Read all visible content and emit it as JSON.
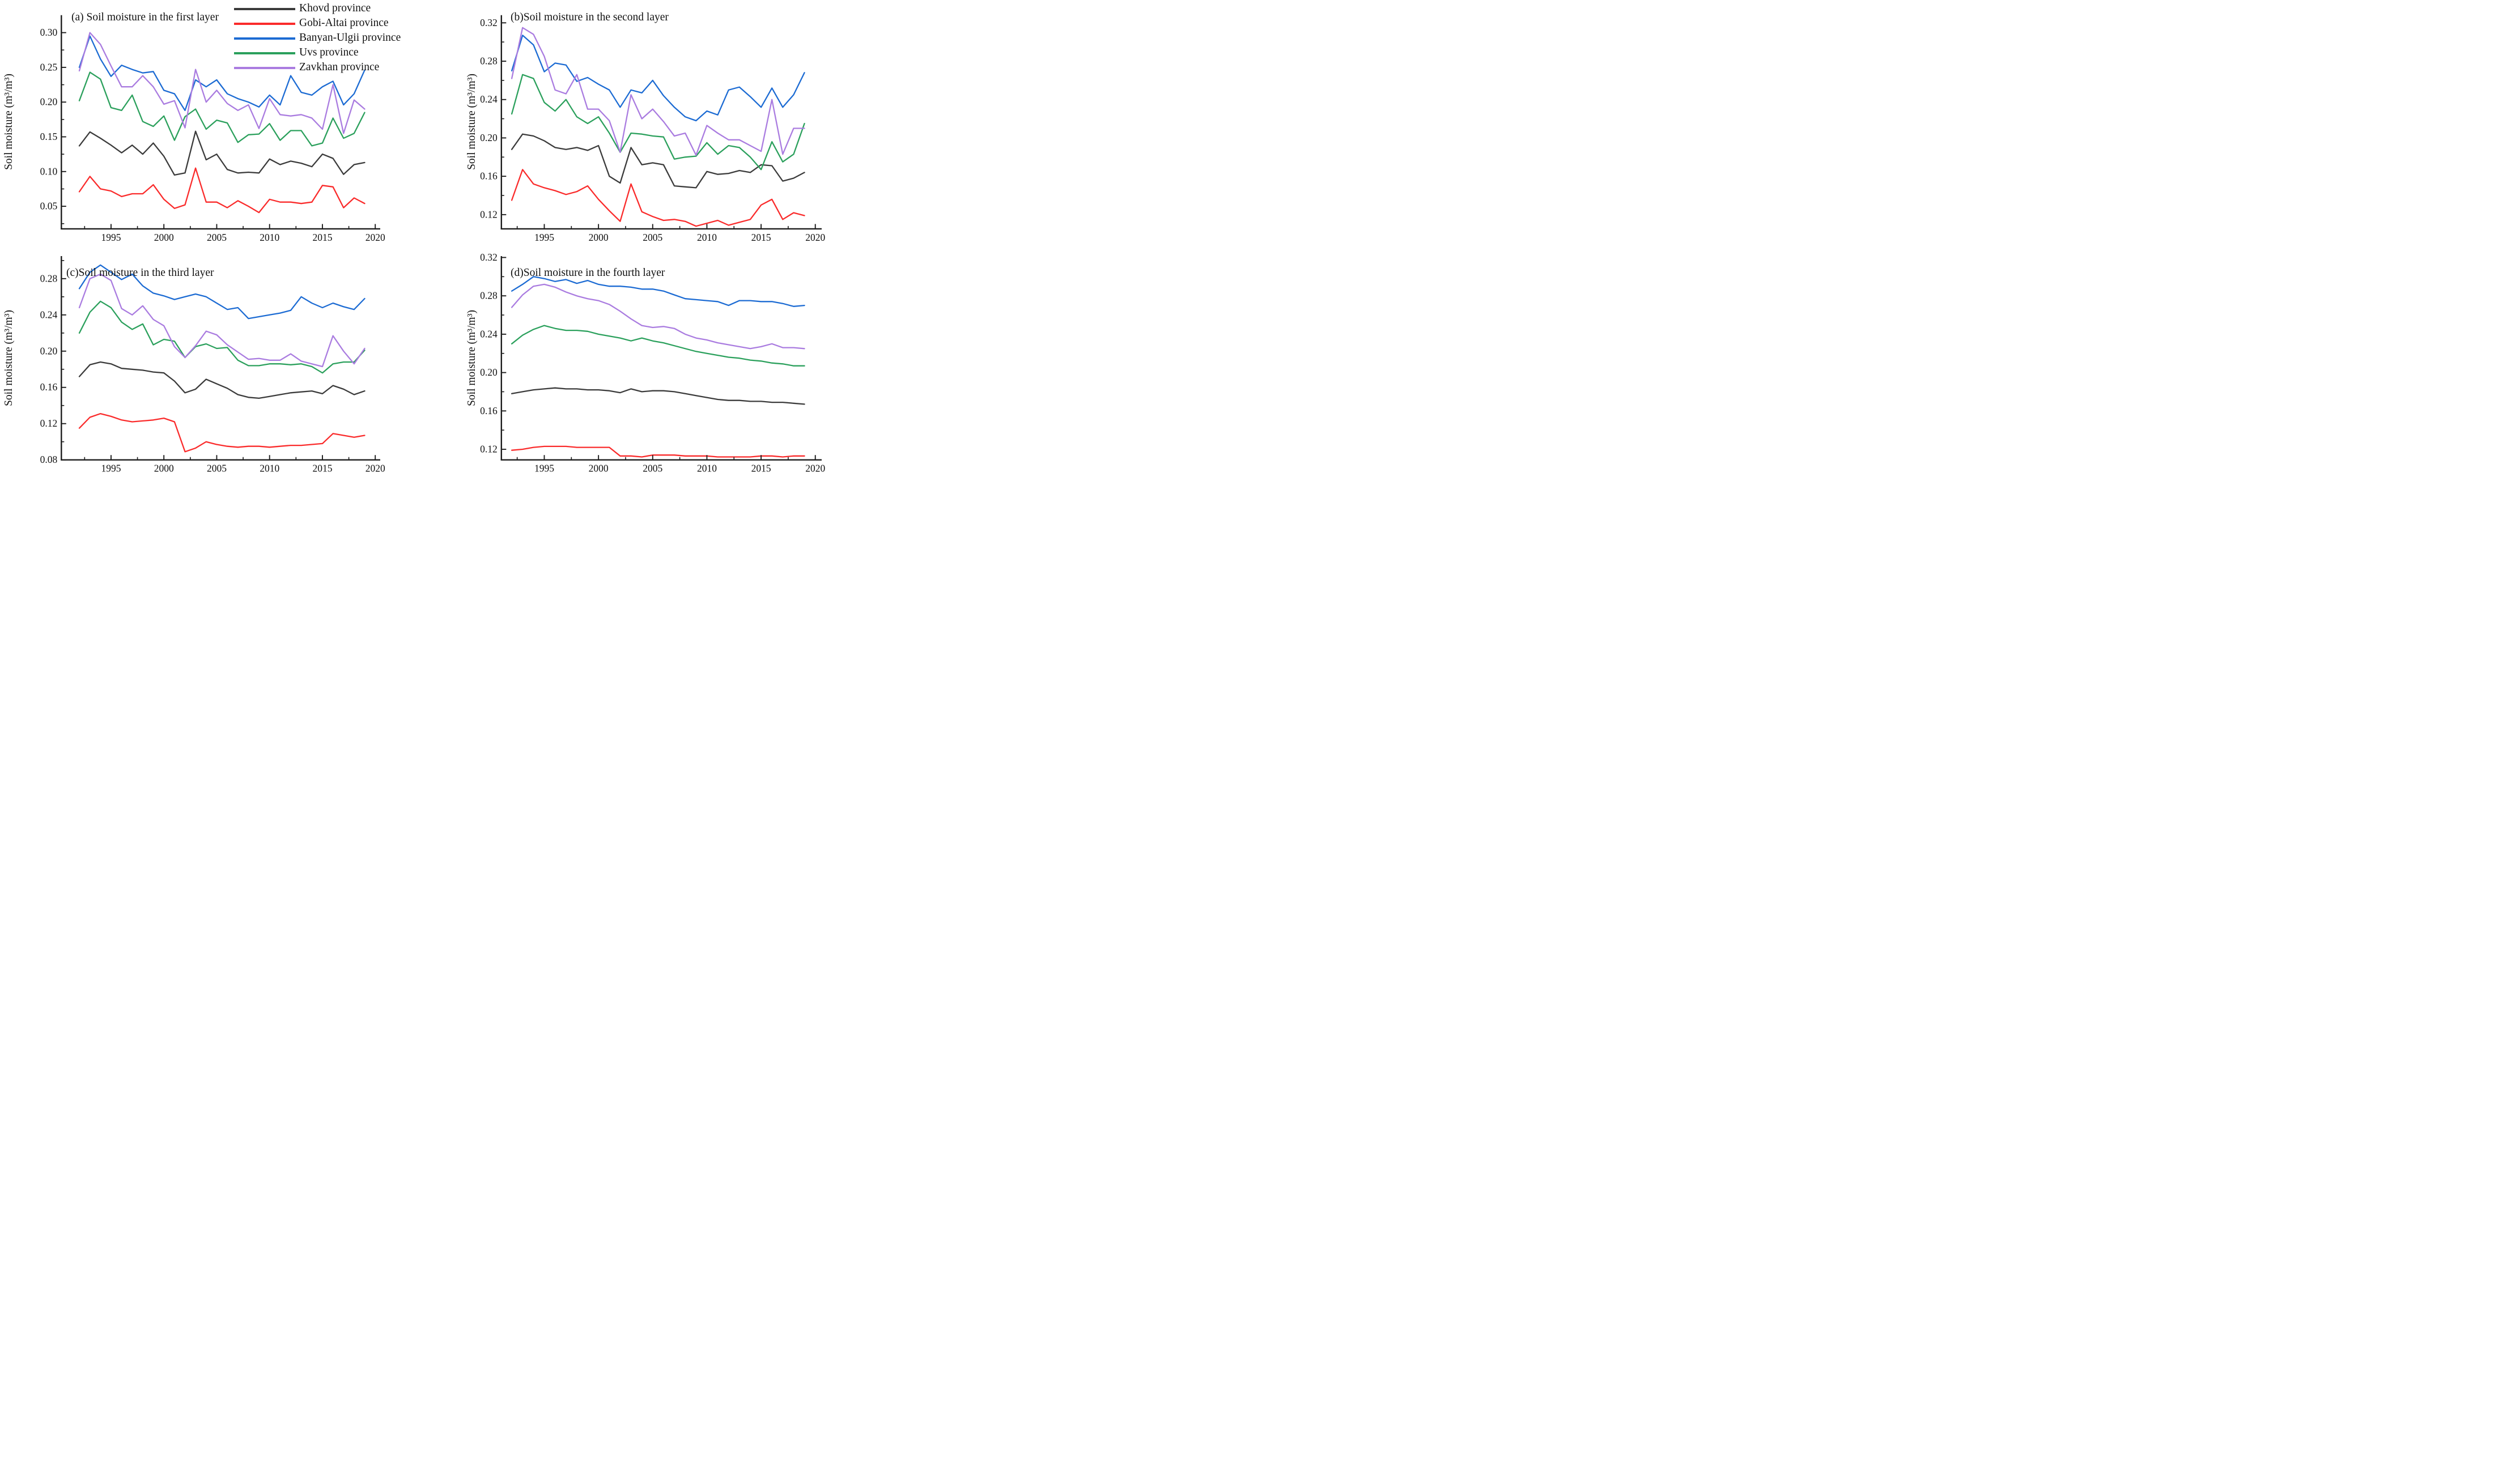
{
  "figure": {
    "description": "Annual soil moisture (1992-2019) in five western Mongolian provinces for four soil layers",
    "background": "#ffffff",
    "axis_color": "#1c1c1c"
  },
  "legend": {
    "entries": [
      {
        "id": "khovd",
        "label": "Khovd province",
        "color": "#3b3b3b"
      },
      {
        "id": "gobi",
        "label": "Gobi-Altai province",
        "color": "#fa2b2b"
      },
      {
        "id": "banyan",
        "label": "Banyan-Ulgii province",
        "color": "#1c6bd3"
      },
      {
        "id": "uvs",
        "label": "Uvs province",
        "color": "#2ba05c"
      },
      {
        "id": "zavkhan",
        "label": "Zavkhan province",
        "color": "#aa7ce0"
      }
    ]
  },
  "chart_data": [
    {
      "id": "a",
      "type": "line",
      "title": "(a) Soil moisture in the first layer",
      "ylabel": "Soil moisture (m³/m³)",
      "xlabel": "",
      "grid": false,
      "legend_position": "top-center-overlay",
      "x_years": [
        1992,
        1993,
        1994,
        1995,
        1996,
        1997,
        1998,
        1999,
        2000,
        2001,
        2002,
        2003,
        2004,
        2005,
        2006,
        2007,
        2008,
        2009,
        2010,
        2011,
        2012,
        2013,
        2014,
        2015,
        2016,
        2017,
        2018,
        2019
      ],
      "xticks": [
        1995,
        2000,
        2005,
        2010,
        2015,
        2020
      ],
      "xminor": [
        1992.5,
        1997.5,
        2002.5,
        2007.5,
        2012.5,
        2017.5
      ],
      "yticks": [
        0.05,
        0.1,
        0.15,
        0.2,
        0.25,
        0.3
      ],
      "yminor": [
        0.025,
        0.075,
        0.125,
        0.175,
        0.225,
        0.275
      ],
      "ylim": [
        0.018,
        0.325
      ],
      "series": [
        {
          "name": "Khovd province",
          "color": "#3b3b3b",
          "values": [
            0.137,
            0.157,
            0.148,
            0.138,
            0.127,
            0.138,
            0.125,
            0.141,
            0.122,
            0.095,
            0.098,
            0.158,
            0.117,
            0.125,
            0.103,
            0.098,
            0.099,
            0.098,
            0.118,
            0.11,
            0.115,
            0.112,
            0.107,
            0.125,
            0.119,
            0.096,
            0.11,
            0.113
          ]
        },
        {
          "name": "Gobi-Altai province",
          "color": "#fa2b2b",
          "values": [
            0.071,
            0.093,
            0.075,
            0.072,
            0.064,
            0.068,
            0.068,
            0.081,
            0.06,
            0.047,
            0.052,
            0.105,
            0.056,
            0.056,
            0.048,
            0.058,
            0.05,
            0.041,
            0.06,
            0.056,
            0.056,
            0.054,
            0.056,
            0.08,
            0.078,
            0.048,
            0.062,
            0.054
          ]
        },
        {
          "name": "Banyan-Ulgii province",
          "color": "#1c6bd3",
          "values": [
            0.25,
            0.295,
            0.262,
            0.237,
            0.253,
            0.247,
            0.242,
            0.244,
            0.217,
            0.212,
            0.188,
            0.232,
            0.222,
            0.232,
            0.212,
            0.205,
            0.2,
            0.193,
            0.21,
            0.196,
            0.238,
            0.214,
            0.21,
            0.222,
            0.23,
            0.196,
            0.212,
            0.246
          ]
        },
        {
          "name": "Uvs province",
          "color": "#2ba05c",
          "values": [
            0.202,
            0.243,
            0.233,
            0.192,
            0.188,
            0.21,
            0.172,
            0.165,
            0.18,
            0.145,
            0.179,
            0.19,
            0.161,
            0.174,
            0.17,
            0.142,
            0.153,
            0.154,
            0.169,
            0.145,
            0.159,
            0.159,
            0.137,
            0.141,
            0.177,
            0.148,
            0.155,
            0.185
          ]
        },
        {
          "name": "Zavkhan province",
          "color": "#aa7ce0",
          "values": [
            0.245,
            0.3,
            0.283,
            0.252,
            0.222,
            0.222,
            0.238,
            0.222,
            0.197,
            0.202,
            0.163,
            0.247,
            0.2,
            0.217,
            0.198,
            0.188,
            0.196,
            0.162,
            0.205,
            0.182,
            0.18,
            0.182,
            0.177,
            0.161,
            0.225,
            0.155,
            0.203,
            0.19
          ]
        }
      ]
    },
    {
      "id": "b",
      "type": "line",
      "title": "(b)Soil moisture in the second layer",
      "ylabel": "Soil moisture (m³/m³)",
      "xlabel": "",
      "grid": false,
      "x_years": [
        1992,
        1993,
        1994,
        1995,
        1996,
        1997,
        1998,
        1999,
        2000,
        2001,
        2002,
        2003,
        2004,
        2005,
        2006,
        2007,
        2008,
        2009,
        2010,
        2011,
        2012,
        2013,
        2014,
        2015,
        2016,
        2017,
        2018,
        2019
      ],
      "xticks": [
        1995,
        2000,
        2005,
        2010,
        2015,
        2020
      ],
      "xminor": [
        1992.5,
        1997.5,
        2002.5,
        2007.5,
        2012.5,
        2017.5
      ],
      "yticks": [
        0.12,
        0.16,
        0.2,
        0.24,
        0.28,
        0.32
      ],
      "yminor": [
        0.14,
        0.18,
        0.22,
        0.26,
        0.3
      ],
      "ylim": [
        0.105,
        0.328
      ],
      "series": [
        {
          "name": "Khovd province",
          "color": "#3b3b3b",
          "values": [
            0.188,
            0.204,
            0.202,
            0.197,
            0.19,
            0.188,
            0.19,
            0.187,
            0.192,
            0.16,
            0.153,
            0.19,
            0.172,
            0.174,
            0.172,
            0.15,
            0.149,
            0.148,
            0.165,
            0.162,
            0.163,
            0.166,
            0.164,
            0.172,
            0.171,
            0.155,
            0.158,
            0.164
          ]
        },
        {
          "name": "Gobi-Altai province",
          "color": "#fa2b2b",
          "values": [
            0.135,
            0.167,
            0.152,
            0.148,
            0.145,
            0.141,
            0.144,
            0.15,
            0.136,
            0.124,
            0.113,
            0.152,
            0.123,
            0.118,
            0.114,
            0.115,
            0.113,
            0.108,
            0.111,
            0.114,
            0.109,
            0.112,
            0.115,
            0.13,
            0.136,
            0.115,
            0.122,
            0.119
          ]
        },
        {
          "name": "Banyan-Ulgii province",
          "color": "#1c6bd3",
          "values": [
            0.27,
            0.307,
            0.297,
            0.269,
            0.278,
            0.276,
            0.259,
            0.263,
            0.256,
            0.25,
            0.232,
            0.25,
            0.247,
            0.26,
            0.244,
            0.232,
            0.222,
            0.218,
            0.228,
            0.224,
            0.25,
            0.253,
            0.243,
            0.232,
            0.252,
            0.232,
            0.245,
            0.268
          ]
        },
        {
          "name": "Uvs province",
          "color": "#2ba05c",
          "values": [
            0.225,
            0.266,
            0.262,
            0.237,
            0.228,
            0.24,
            0.222,
            0.215,
            0.222,
            0.205,
            0.185,
            0.205,
            0.204,
            0.202,
            0.201,
            0.178,
            0.18,
            0.181,
            0.195,
            0.183,
            0.192,
            0.19,
            0.18,
            0.167,
            0.196,
            0.175,
            0.183,
            0.215
          ]
        },
        {
          "name": "Zavkhan province",
          "color": "#aa7ce0",
          "values": [
            0.262,
            0.315,
            0.308,
            0.285,
            0.25,
            0.246,
            0.266,
            0.23,
            0.23,
            0.218,
            0.185,
            0.245,
            0.22,
            0.23,
            0.217,
            0.202,
            0.205,
            0.182,
            0.213,
            0.205,
            0.198,
            0.198,
            0.192,
            0.186,
            0.24,
            0.183,
            0.21,
            0.21
          ]
        }
      ]
    },
    {
      "id": "c",
      "type": "line",
      "title": "(c)Soil moisture in the third layer",
      "ylabel": "Soil moisture (m³/m³)",
      "xlabel": "",
      "grid": false,
      "x_years": [
        1992,
        1993,
        1994,
        1995,
        1996,
        1997,
        1998,
        1999,
        2000,
        2001,
        2002,
        2003,
        2004,
        2005,
        2006,
        2007,
        2008,
        2009,
        2010,
        2011,
        2012,
        2013,
        2014,
        2015,
        2016,
        2017,
        2018,
        2019
      ],
      "xticks": [
        1995,
        2000,
        2005,
        2010,
        2015,
        2020
      ],
      "xminor": [
        1992.5,
        1997.5,
        2002.5,
        2007.5,
        2012.5,
        2017.5
      ],
      "yticks": [
        0.08,
        0.12,
        0.16,
        0.2,
        0.24,
        0.28
      ],
      "yminor": [
        0.1,
        0.14,
        0.18,
        0.22,
        0.26,
        0.3
      ],
      "ylim": [
        0.08,
        0.305
      ],
      "series": [
        {
          "name": "Khovd province",
          "color": "#3b3b3b",
          "values": [
            0.172,
            0.185,
            0.188,
            0.186,
            0.181,
            0.18,
            0.179,
            0.177,
            0.176,
            0.167,
            0.154,
            0.158,
            0.169,
            0.164,
            0.159,
            0.152,
            0.149,
            0.148,
            0.15,
            0.152,
            0.154,
            0.155,
            0.156,
            0.153,
            0.162,
            0.158,
            0.152,
            0.156
          ]
        },
        {
          "name": "Gobi-Altai province",
          "color": "#fa2b2b",
          "values": [
            0.115,
            0.127,
            0.131,
            0.128,
            0.124,
            0.122,
            0.123,
            0.124,
            0.126,
            0.122,
            0.089,
            0.093,
            0.1,
            0.097,
            0.095,
            0.094,
            0.095,
            0.095,
            0.094,
            0.095,
            0.096,
            0.096,
            0.097,
            0.098,
            0.109,
            0.107,
            0.105,
            0.107
          ]
        },
        {
          "name": "Banyan-Ulgii province",
          "color": "#1c6bd3",
          "values": [
            0.269,
            0.287,
            0.295,
            0.287,
            0.279,
            0.285,
            0.272,
            0.264,
            0.261,
            0.257,
            0.26,
            0.263,
            0.26,
            0.253,
            0.246,
            0.248,
            0.236,
            0.238,
            0.24,
            0.242,
            0.245,
            0.26,
            0.253,
            0.248,
            0.253,
            0.249,
            0.246,
            0.258
          ]
        },
        {
          "name": "Uvs province",
          "color": "#2ba05c",
          "values": [
            0.22,
            0.243,
            0.255,
            0.248,
            0.232,
            0.224,
            0.23,
            0.207,
            0.213,
            0.211,
            0.193,
            0.205,
            0.208,
            0.203,
            0.204,
            0.19,
            0.184,
            0.184,
            0.186,
            0.186,
            0.185,
            0.186,
            0.183,
            0.176,
            0.186,
            0.188,
            0.188,
            0.201
          ]
        },
        {
          "name": "Zavkhan province",
          "color": "#aa7ce0",
          "values": [
            0.248,
            0.28,
            0.285,
            0.278,
            0.247,
            0.24,
            0.25,
            0.235,
            0.228,
            0.205,
            0.193,
            0.206,
            0.222,
            0.218,
            0.207,
            0.199,
            0.191,
            0.192,
            0.19,
            0.19,
            0.197,
            0.189,
            0.186,
            0.183,
            0.217,
            0.2,
            0.186,
            0.203
          ]
        }
      ]
    },
    {
      "id": "d",
      "type": "line",
      "title": "(d)Soil moisture in the fourth layer",
      "ylabel": "Soil moisture (m³/m³)",
      "xlabel": "",
      "grid": false,
      "x_years": [
        1992,
        1993,
        1994,
        1995,
        1996,
        1997,
        1998,
        1999,
        2000,
        2001,
        2002,
        2003,
        2004,
        2005,
        2006,
        2007,
        2008,
        2009,
        2010,
        2011,
        2012,
        2013,
        2014,
        2015,
        2016,
        2017,
        2018,
        2019
      ],
      "xticks": [
        1995,
        2000,
        2005,
        2010,
        2015,
        2020
      ],
      "xminor": [
        1992.5,
        1997.5,
        2002.5,
        2007.5,
        2012.5,
        2017.5
      ],
      "yticks": [
        0.12,
        0.16,
        0.2,
        0.24,
        0.28,
        0.32
      ],
      "yminor": [
        0.14,
        0.18,
        0.22,
        0.26,
        0.3
      ],
      "ylim": [
        0.109,
        0.324
      ],
      "series": [
        {
          "name": "Khovd province",
          "color": "#3b3b3b",
          "values": [
            0.178,
            0.18,
            0.182,
            0.183,
            0.184,
            0.183,
            0.183,
            0.182,
            0.182,
            0.181,
            0.179,
            0.183,
            0.18,
            0.181,
            0.181,
            0.18,
            0.178,
            0.176,
            0.174,
            0.172,
            0.171,
            0.171,
            0.17,
            0.17,
            0.169,
            0.169,
            0.168,
            0.167
          ]
        },
        {
          "name": "Gobi-Altai province",
          "color": "#fa2b2b",
          "values": [
            0.119,
            0.12,
            0.122,
            0.123,
            0.123,
            0.123,
            0.122,
            0.122,
            0.122,
            0.122,
            0.113,
            0.113,
            0.112,
            0.114,
            0.114,
            0.114,
            0.113,
            0.113,
            0.113,
            0.112,
            0.112,
            0.112,
            0.112,
            0.113,
            0.113,
            0.112,
            0.113,
            0.113
          ]
        },
        {
          "name": "Banyan-Ulgii province",
          "color": "#1c6bd3",
          "values": [
            0.285,
            0.292,
            0.3,
            0.298,
            0.295,
            0.297,
            0.293,
            0.296,
            0.292,
            0.29,
            0.29,
            0.289,
            0.287,
            0.287,
            0.285,
            0.281,
            0.277,
            0.276,
            0.275,
            0.274,
            0.27,
            0.275,
            0.275,
            0.274,
            0.274,
            0.272,
            0.269,
            0.27
          ]
        },
        {
          "name": "Uvs province",
          "color": "#2ba05c",
          "values": [
            0.23,
            0.239,
            0.245,
            0.249,
            0.246,
            0.244,
            0.244,
            0.243,
            0.24,
            0.238,
            0.236,
            0.233,
            0.236,
            0.233,
            0.231,
            0.228,
            0.225,
            0.222,
            0.22,
            0.218,
            0.216,
            0.215,
            0.213,
            0.212,
            0.21,
            0.209,
            0.207,
            0.207
          ]
        },
        {
          "name": "Zavkhan province",
          "color": "#aa7ce0",
          "values": [
            0.268,
            0.281,
            0.29,
            0.292,
            0.289,
            0.284,
            0.28,
            0.277,
            0.275,
            0.271,
            0.264,
            0.256,
            0.249,
            0.247,
            0.248,
            0.246,
            0.24,
            0.236,
            0.234,
            0.231,
            0.229,
            0.227,
            0.225,
            0.227,
            0.23,
            0.226,
            0.226,
            0.225
          ]
        }
      ]
    }
  ]
}
